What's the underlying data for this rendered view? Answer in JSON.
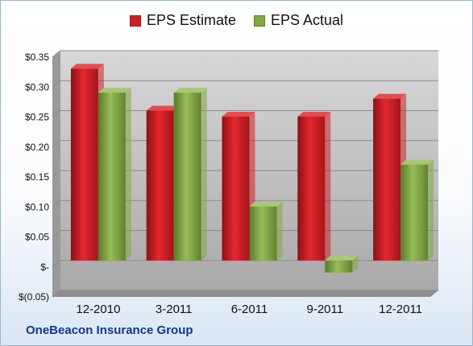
{
  "chart_data": {
    "type": "bar",
    "categories": [
      "12-2010",
      "3-2011",
      "6-2011",
      "9-2011",
      "12-2011"
    ],
    "series": [
      {
        "name": "EPS Estimate",
        "values": [
          0.32,
          0.25,
          0.24,
          0.24,
          0.27
        ],
        "color": "#cc2026"
      },
      {
        "name": "EPS Actual",
        "values": [
          0.28,
          0.28,
          0.09,
          -0.02,
          0.16
        ],
        "color": "#82a845"
      }
    ],
    "ylim": [
      -0.05,
      0.35
    ],
    "yticks": [
      0.35,
      0.3,
      0.25,
      0.2,
      0.15,
      0.1,
      0.05,
      0,
      -0.05
    ],
    "ytick_labels": [
      "$0.35",
      "$0.30",
      "$0.25",
      "$0.20",
      "$0.15",
      "$0.10",
      "$0.05",
      "$-",
      "$(0.05)"
    ],
    "legend_position": "top-center",
    "grid": true,
    "plot_background": "#c0c0c0"
  },
  "footer": {
    "company": "OneBeacon Insurance Group"
  }
}
